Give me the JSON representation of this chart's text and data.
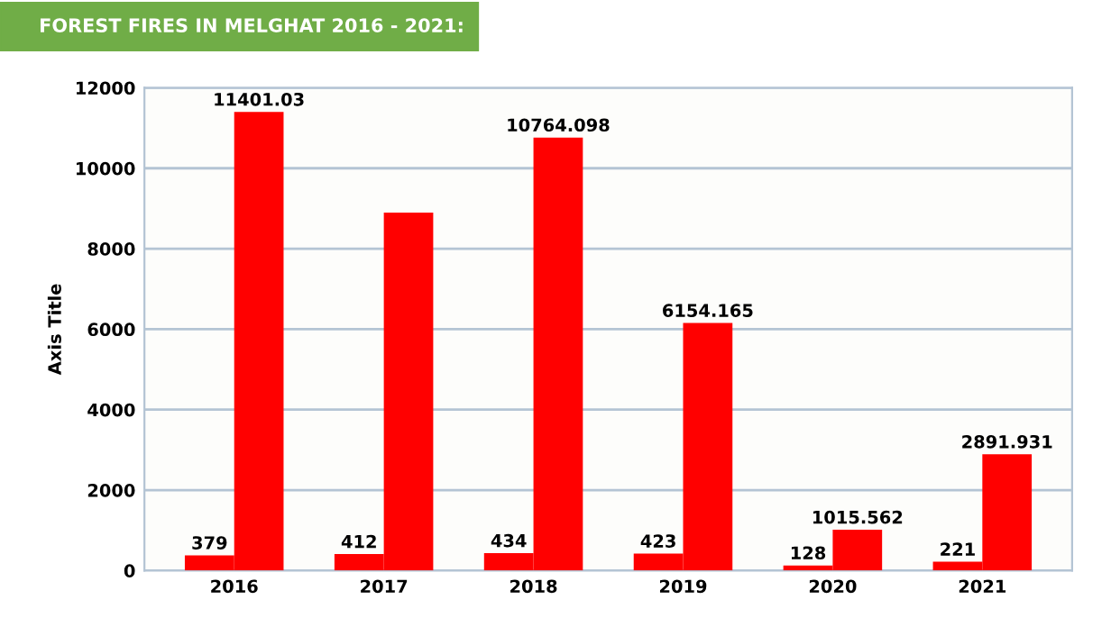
{
  "chart_data": {
    "type": "bar",
    "title": "FOREST FIRES IN MELGHAT 2016 - 2021:",
    "ylabel": "Axis Title",
    "categories": [
      "2016",
      "2017",
      "2018",
      "2019",
      "2020",
      "2021"
    ],
    "series": [
      {
        "color": "#ff0000",
        "values": [
          379,
          412,
          434,
          423,
          128,
          221
        ],
        "value_labels": [
          "379",
          "412",
          "434",
          "423",
          "128",
          "221"
        ]
      },
      {
        "color": "#ff0000",
        "values": [
          11401.03,
          8900,
          10764.098,
          6154.165,
          1015.562,
          2891.931
        ],
        "value_labels": [
          "11401.03",
          null,
          "10764.098",
          "6154.165",
          "1015.562",
          "2891.931"
        ]
      }
    ],
    "ylim": [
      0,
      12000
    ],
    "yticks": [
      0,
      2000,
      4000,
      6000,
      8000,
      10000,
      12000
    ],
    "grid": "y",
    "legend": false
  }
}
